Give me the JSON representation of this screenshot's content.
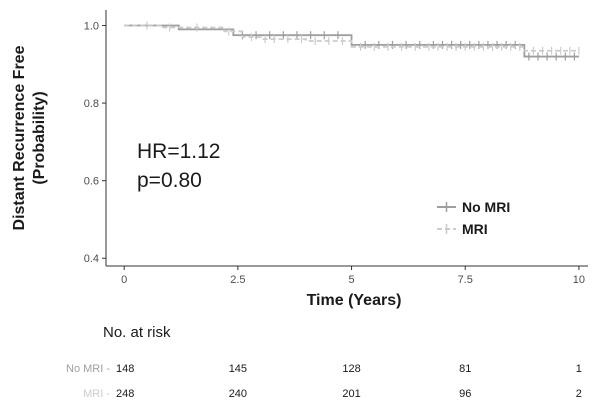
{
  "chart_data": {
    "type": "line",
    "title": "",
    "xlabel": "Time (Years)",
    "ylabel_lines": [
      "Distant Recurrence Free",
      "(Probability)"
    ],
    "xlim": [
      -0.4,
      10.2
    ],
    "ylim": [
      0.38,
      1.04
    ],
    "x_ticks": [
      0,
      2.5,
      5,
      7.5,
      10
    ],
    "x_tick_labels": [
      "0",
      "2.5",
      "5",
      "7.5",
      "10"
    ],
    "y_ticks": [
      0.4,
      0.6,
      0.8,
      1.0
    ],
    "y_tick_labels": [
      "0.4",
      "0.6",
      "0.8",
      "1.0"
    ],
    "grid": false,
    "legend_position": "right",
    "annotations": [
      "HR=1.12",
      "p=0.80"
    ],
    "series": [
      {
        "name": "No MRI",
        "color": "#9e9e9e",
        "dash": "none",
        "x": [
          0,
          1.2,
          2.4,
          4.9,
          5.0,
          8.8,
          10
        ],
        "y": [
          1.0,
          0.99,
          0.975,
          0.975,
          0.95,
          0.92,
          0.92
        ],
        "censor_x": [
          2.6,
          2.9,
          3.2,
          3.5,
          3.8,
          4.1,
          4.4,
          4.7,
          5.3,
          5.6,
          5.9,
          6.2,
          6.5,
          6.8,
          7.0,
          7.2,
          7.4,
          7.6,
          7.8,
          8.0,
          8.2,
          8.4,
          8.6,
          8.9,
          9.1,
          9.3,
          9.5,
          9.7,
          9.9
        ]
      },
      {
        "name": "MRI",
        "color": "#cccccc",
        "dash": "5,3",
        "x": [
          0,
          0.8,
          2.2,
          2.6,
          3.0,
          4.0,
          5.0,
          8.8,
          10
        ],
        "y": [
          1.0,
          0.995,
          0.985,
          0.97,
          0.965,
          0.96,
          0.945,
          0.935,
          0.935
        ],
        "censor_x": [
          0.5,
          1.0,
          1.6,
          2.3,
          2.8,
          3.1,
          3.3,
          3.6,
          3.9,
          4.2,
          4.5,
          4.8,
          5.2,
          5.5,
          5.8,
          6.1,
          6.4,
          6.7,
          6.9,
          7.1,
          7.3,
          7.5,
          7.7,
          7.9,
          8.1,
          8.3,
          8.5,
          8.7,
          9.0,
          9.2,
          9.4,
          9.6,
          9.8,
          10.0
        ]
      }
    ]
  },
  "risk_table": {
    "title": "No. at risk",
    "times": [
      0,
      2.5,
      5,
      7.5,
      10
    ],
    "rows": [
      {
        "name": "No MRI",
        "counts": [
          "148",
          "145",
          "128",
          "81",
          "1"
        ]
      },
      {
        "name": "MRI",
        "counts": [
          "248",
          "240",
          "201",
          "96",
          "2"
        ]
      }
    ]
  }
}
